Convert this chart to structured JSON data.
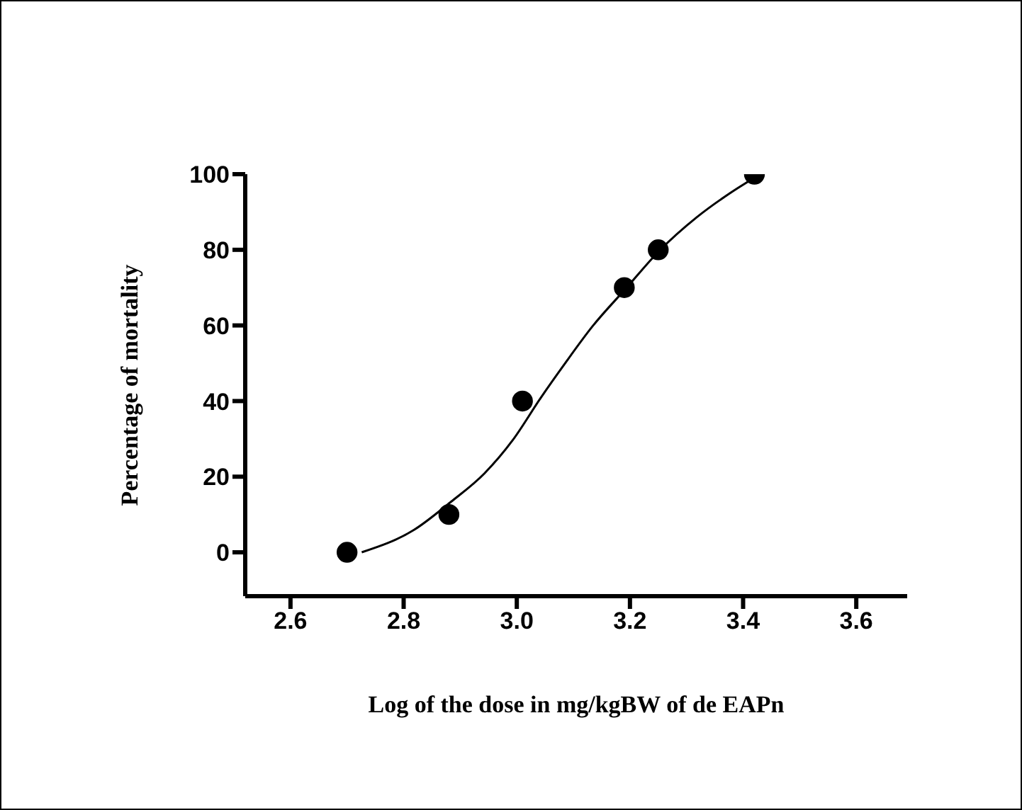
{
  "chart_data": {
    "type": "scatter",
    "xlabel": "Log of the dose in mg/kgBW of de EAPn",
    "ylabel": "Percentage of mortality",
    "xlim": [
      2.52,
      3.69
    ],
    "xticks": [
      {
        "value": 2.6,
        "label": "2.6"
      },
      {
        "value": 2.8,
        "label": "2.8"
      },
      {
        "value": 3.0,
        "label": "3.0"
      },
      {
        "value": 3.2,
        "label": "3.2"
      },
      {
        "value": 3.4,
        "label": "3.4"
      },
      {
        "value": 3.6,
        "label": "3.6"
      }
    ],
    "ylim": [
      -11.6,
      100
    ],
    "yticks": [
      0,
      20,
      40,
      60,
      80,
      100
    ],
    "grid": false,
    "series": [
      {
        "color": "#000000",
        "marker": "circle",
        "x": [
          2.7,
          2.88,
          3.01,
          3.19,
          3.25,
          3.42
        ],
        "values": [
          0,
          10,
          40,
          70,
          80,
          100
        ]
      },
      {
        "type": "line",
        "color": "#000000",
        "marker": "none",
        "line_style": "solid",
        "x": [
          2.726,
          2.818,
          2.884,
          2.943,
          2.993,
          3.043,
          3.084,
          3.134,
          3.193,
          3.251,
          3.318,
          3.376,
          3.426
        ],
        "values": [
          0,
          5.9,
          13.4,
          20.9,
          29.7,
          41,
          49.7,
          59.8,
          69.8,
          79.6,
          88.6,
          94.9,
          99.6
        ]
      }
    ]
  }
}
